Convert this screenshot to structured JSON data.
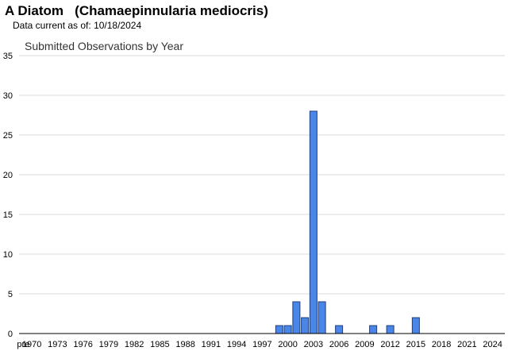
{
  "header": {
    "title": "A Diatom   (Chamaepinnularia mediocris)",
    "data_current_label": "Data current as of:",
    "data_current_date": "10/18/2024"
  },
  "colors": {
    "bar_fill": "#4a86e8",
    "bar_stroke": "#1f3f7a",
    "grid": "#d9d9d9",
    "axis": "#000000"
  },
  "chart_data": {
    "type": "bar",
    "title": "Submitted Observations by Year",
    "xlabel": "",
    "ylabel": "",
    "ylim": [
      0,
      35
    ],
    "yticks": [
      0,
      5,
      10,
      15,
      20,
      25,
      30,
      35
    ],
    "grid": true,
    "legend": "none",
    "categories": [
      "pre",
      "1970",
      "1971",
      "1972",
      "1973",
      "1974",
      "1975",
      "1976",
      "1977",
      "1978",
      "1979",
      "1980",
      "1981",
      "1982",
      "1983",
      "1984",
      "1985",
      "1986",
      "1987",
      "1988",
      "1989",
      "1990",
      "1991",
      "1992",
      "1993",
      "1994",
      "1995",
      "1996",
      "1997",
      "1998",
      "1999",
      "2000",
      "2001",
      "2002",
      "2003",
      "2004",
      "2005",
      "2006",
      "2007",
      "2008",
      "2009",
      "2010",
      "2011",
      "2012",
      "2013",
      "2014",
      "2015",
      "2016",
      "2017",
      "2018",
      "2019",
      "2020",
      "2021",
      "2022",
      "2023",
      "2024"
    ],
    "x_tick_labels": [
      "pre",
      "1970",
      "1973",
      "1976",
      "1979",
      "1982",
      "1985",
      "1988",
      "1991",
      "1994",
      "1997",
      "2000",
      "2003",
      "2006",
      "2009",
      "2012",
      "2015",
      "2018",
      "2021",
      "2024"
    ],
    "values": [
      0,
      0,
      0,
      0,
      0,
      0,
      0,
      0,
      0,
      0,
      0,
      0,
      0,
      0,
      0,
      0,
      0,
      0,
      0,
      0,
      0,
      0,
      0,
      0,
      0,
      0,
      0,
      0,
      0,
      0,
      1,
      1,
      4,
      2,
      28,
      4,
      0,
      1,
      0,
      0,
      0,
      1,
      0,
      1,
      0,
      0,
      2,
      0,
      0,
      0,
      0,
      0,
      0,
      0,
      0,
      0
    ]
  }
}
